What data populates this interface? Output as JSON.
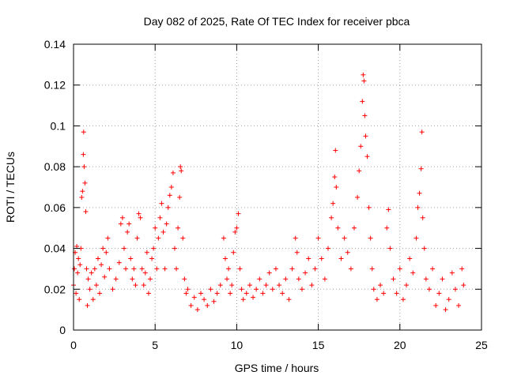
{
  "chart_data": {
    "type": "scatter",
    "title": "Day 082 of 2025, Rate Of TEC Index for receiver pbca",
    "xlabel": "GPS time / hours",
    "ylabel": "ROTI / TECUs",
    "xlim": [
      0,
      25
    ],
    "ylim": [
      0,
      0.14
    ],
    "xticks": [
      "0",
      "5",
      "10",
      "15",
      "20",
      "25"
    ],
    "yticks": [
      "0",
      "0.02",
      "0.04",
      "0.06",
      "0.08",
      "0.1",
      "0.12",
      "0.14"
    ],
    "grid": true,
    "marker": "+",
    "color": "#ff0000",
    "series": [
      {
        "name": "",
        "approx_profile_note": "",
        "points": [
          [
            0.0,
            0.022
          ],
          [
            0.05,
            0.03
          ],
          [
            0.1,
            0.038
          ],
          [
            0.15,
            0.018
          ],
          [
            0.2,
            0.041
          ],
          [
            0.25,
            0.028
          ],
          [
            0.3,
            0.035
          ],
          [
            0.35,
            0.015
          ],
          [
            0.4,
            0.032
          ],
          [
            0.45,
            0.04
          ],
          [
            0.5,
            0.065
          ],
          [
            0.55,
            0.068
          ],
          [
            0.6,
            0.086
          ],
          [
            0.62,
            0.097
          ],
          [
            0.65,
            0.08
          ],
          [
            0.7,
            0.072
          ],
          [
            0.75,
            0.058
          ],
          [
            0.8,
            0.03
          ],
          [
            0.85,
            0.012
          ],
          [
            0.9,
            0.025
          ],
          [
            1.0,
            0.02
          ],
          [
            1.1,
            0.028
          ],
          [
            1.2,
            0.015
          ],
          [
            1.3,
            0.03
          ],
          [
            1.4,
            0.022
          ],
          [
            1.5,
            0.035
          ],
          [
            1.6,
            0.018
          ],
          [
            1.7,
            0.032
          ],
          [
            1.8,
            0.04
          ],
          [
            1.9,
            0.026
          ],
          [
            2.0,
            0.038
          ],
          [
            2.1,
            0.045
          ],
          [
            2.2,
            0.03
          ],
          [
            2.4,
            0.02
          ],
          [
            2.6,
            0.025
          ],
          [
            2.8,
            0.033
          ],
          [
            2.9,
            0.052
          ],
          [
            3.0,
            0.055
          ],
          [
            3.1,
            0.04
          ],
          [
            3.2,
            0.03
          ],
          [
            3.3,
            0.048
          ],
          [
            3.4,
            0.052
          ],
          [
            3.5,
            0.035
          ],
          [
            3.6,
            0.025
          ],
          [
            3.7,
            0.03
          ],
          [
            3.8,
            0.022
          ],
          [
            3.9,
            0.045
          ],
          [
            4.0,
            0.057
          ],
          [
            4.1,
            0.055
          ],
          [
            4.2,
            0.03
          ],
          [
            4.3,
            0.022
          ],
          [
            4.4,
            0.028
          ],
          [
            4.5,
            0.038
          ],
          [
            4.6,
            0.018
          ],
          [
            4.7,
            0.025
          ],
          [
            4.8,
            0.035
          ],
          [
            4.9,
            0.04
          ],
          [
            5.0,
            0.05
          ],
          [
            5.1,
            0.03
          ],
          [
            5.2,
            0.045
          ],
          [
            5.3,
            0.055
          ],
          [
            5.4,
            0.062
          ],
          [
            5.5,
            0.048
          ],
          [
            5.6,
            0.03
          ],
          [
            5.7,
            0.052
          ],
          [
            5.8,
            0.06
          ],
          [
            5.9,
            0.066
          ],
          [
            6.0,
            0.07
          ],
          [
            6.1,
            0.077
          ],
          [
            6.2,
            0.04
          ],
          [
            6.3,
            0.03
          ],
          [
            6.4,
            0.05
          ],
          [
            6.5,
            0.065
          ],
          [
            6.55,
            0.08
          ],
          [
            6.6,
            0.078
          ],
          [
            6.7,
            0.045
          ],
          [
            6.8,
            0.025
          ],
          [
            6.9,
            0.018
          ],
          [
            7.0,
            0.02
          ],
          [
            7.2,
            0.012
          ],
          [
            7.4,
            0.016
          ],
          [
            7.6,
            0.01
          ],
          [
            7.8,
            0.018
          ],
          [
            8.0,
            0.015
          ],
          [
            8.2,
            0.012
          ],
          [
            8.4,
            0.02
          ],
          [
            8.6,
            0.014
          ],
          [
            8.8,
            0.018
          ],
          [
            9.0,
            0.022
          ],
          [
            9.2,
            0.045
          ],
          [
            9.3,
            0.035
          ],
          [
            9.4,
            0.025
          ],
          [
            9.5,
            0.03
          ],
          [
            9.6,
            0.018
          ],
          [
            9.7,
            0.022
          ],
          [
            9.8,
            0.038
          ],
          [
            9.9,
            0.048
          ],
          [
            10.0,
            0.05
          ],
          [
            10.1,
            0.057
          ],
          [
            10.2,
            0.03
          ],
          [
            10.3,
            0.02
          ],
          [
            10.4,
            0.015
          ],
          [
            10.6,
            0.018
          ],
          [
            10.8,
            0.022
          ],
          [
            11.0,
            0.016
          ],
          [
            11.2,
            0.02
          ],
          [
            11.4,
            0.025
          ],
          [
            11.6,
            0.018
          ],
          [
            11.8,
            0.022
          ],
          [
            12.0,
            0.028
          ],
          [
            12.2,
            0.02
          ],
          [
            12.4,
            0.03
          ],
          [
            12.6,
            0.022
          ],
          [
            12.8,
            0.018
          ],
          [
            13.0,
            0.025
          ],
          [
            13.2,
            0.015
          ],
          [
            13.4,
            0.03
          ],
          [
            13.6,
            0.045
          ],
          [
            13.7,
            0.038
          ],
          [
            13.8,
            0.025
          ],
          [
            14.0,
            0.02
          ],
          [
            14.2,
            0.028
          ],
          [
            14.4,
            0.035
          ],
          [
            14.6,
            0.022
          ],
          [
            14.8,
            0.03
          ],
          [
            15.0,
            0.045
          ],
          [
            15.2,
            0.035
          ],
          [
            15.4,
            0.025
          ],
          [
            15.6,
            0.04
          ],
          [
            15.8,
            0.055
          ],
          [
            15.9,
            0.062
          ],
          [
            16.0,
            0.075
          ],
          [
            16.05,
            0.088
          ],
          [
            16.1,
            0.07
          ],
          [
            16.2,
            0.05
          ],
          [
            16.4,
            0.035
          ],
          [
            16.6,
            0.045
          ],
          [
            16.8,
            0.038
          ],
          [
            17.0,
            0.03
          ],
          [
            17.2,
            0.05
          ],
          [
            17.4,
            0.065
          ],
          [
            17.5,
            0.078
          ],
          [
            17.6,
            0.09
          ],
          [
            17.7,
            0.112
          ],
          [
            17.75,
            0.125
          ],
          [
            17.8,
            0.122
          ],
          [
            17.85,
            0.105
          ],
          [
            17.9,
            0.095
          ],
          [
            18.0,
            0.085
          ],
          [
            18.1,
            0.06
          ],
          [
            18.2,
            0.045
          ],
          [
            18.3,
            0.03
          ],
          [
            18.4,
            0.02
          ],
          [
            18.6,
            0.015
          ],
          [
            18.8,
            0.022
          ],
          [
            19.0,
            0.018
          ],
          [
            19.2,
            0.05
          ],
          [
            19.3,
            0.059
          ],
          [
            19.4,
            0.04
          ],
          [
            19.6,
            0.025
          ],
          [
            19.8,
            0.018
          ],
          [
            20.0,
            0.03
          ],
          [
            20.2,
            0.015
          ],
          [
            20.4,
            0.022
          ],
          [
            20.6,
            0.035
          ],
          [
            20.8,
            0.028
          ],
          [
            21.0,
            0.045
          ],
          [
            21.1,
            0.06
          ],
          [
            21.2,
            0.067
          ],
          [
            21.3,
            0.079
          ],
          [
            21.35,
            0.097
          ],
          [
            21.4,
            0.055
          ],
          [
            21.5,
            0.04
          ],
          [
            21.6,
            0.025
          ],
          [
            21.8,
            0.02
          ],
          [
            22.0,
            0.03
          ],
          [
            22.2,
            0.012
          ],
          [
            22.4,
            0.018
          ],
          [
            22.6,
            0.025
          ],
          [
            22.8,
            0.01
          ],
          [
            23.0,
            0.015
          ],
          [
            23.2,
            0.028
          ],
          [
            23.4,
            0.02
          ],
          [
            23.6,
            0.012
          ],
          [
            23.8,
            0.03
          ],
          [
            23.9,
            0.022
          ]
        ]
      }
    ]
  }
}
